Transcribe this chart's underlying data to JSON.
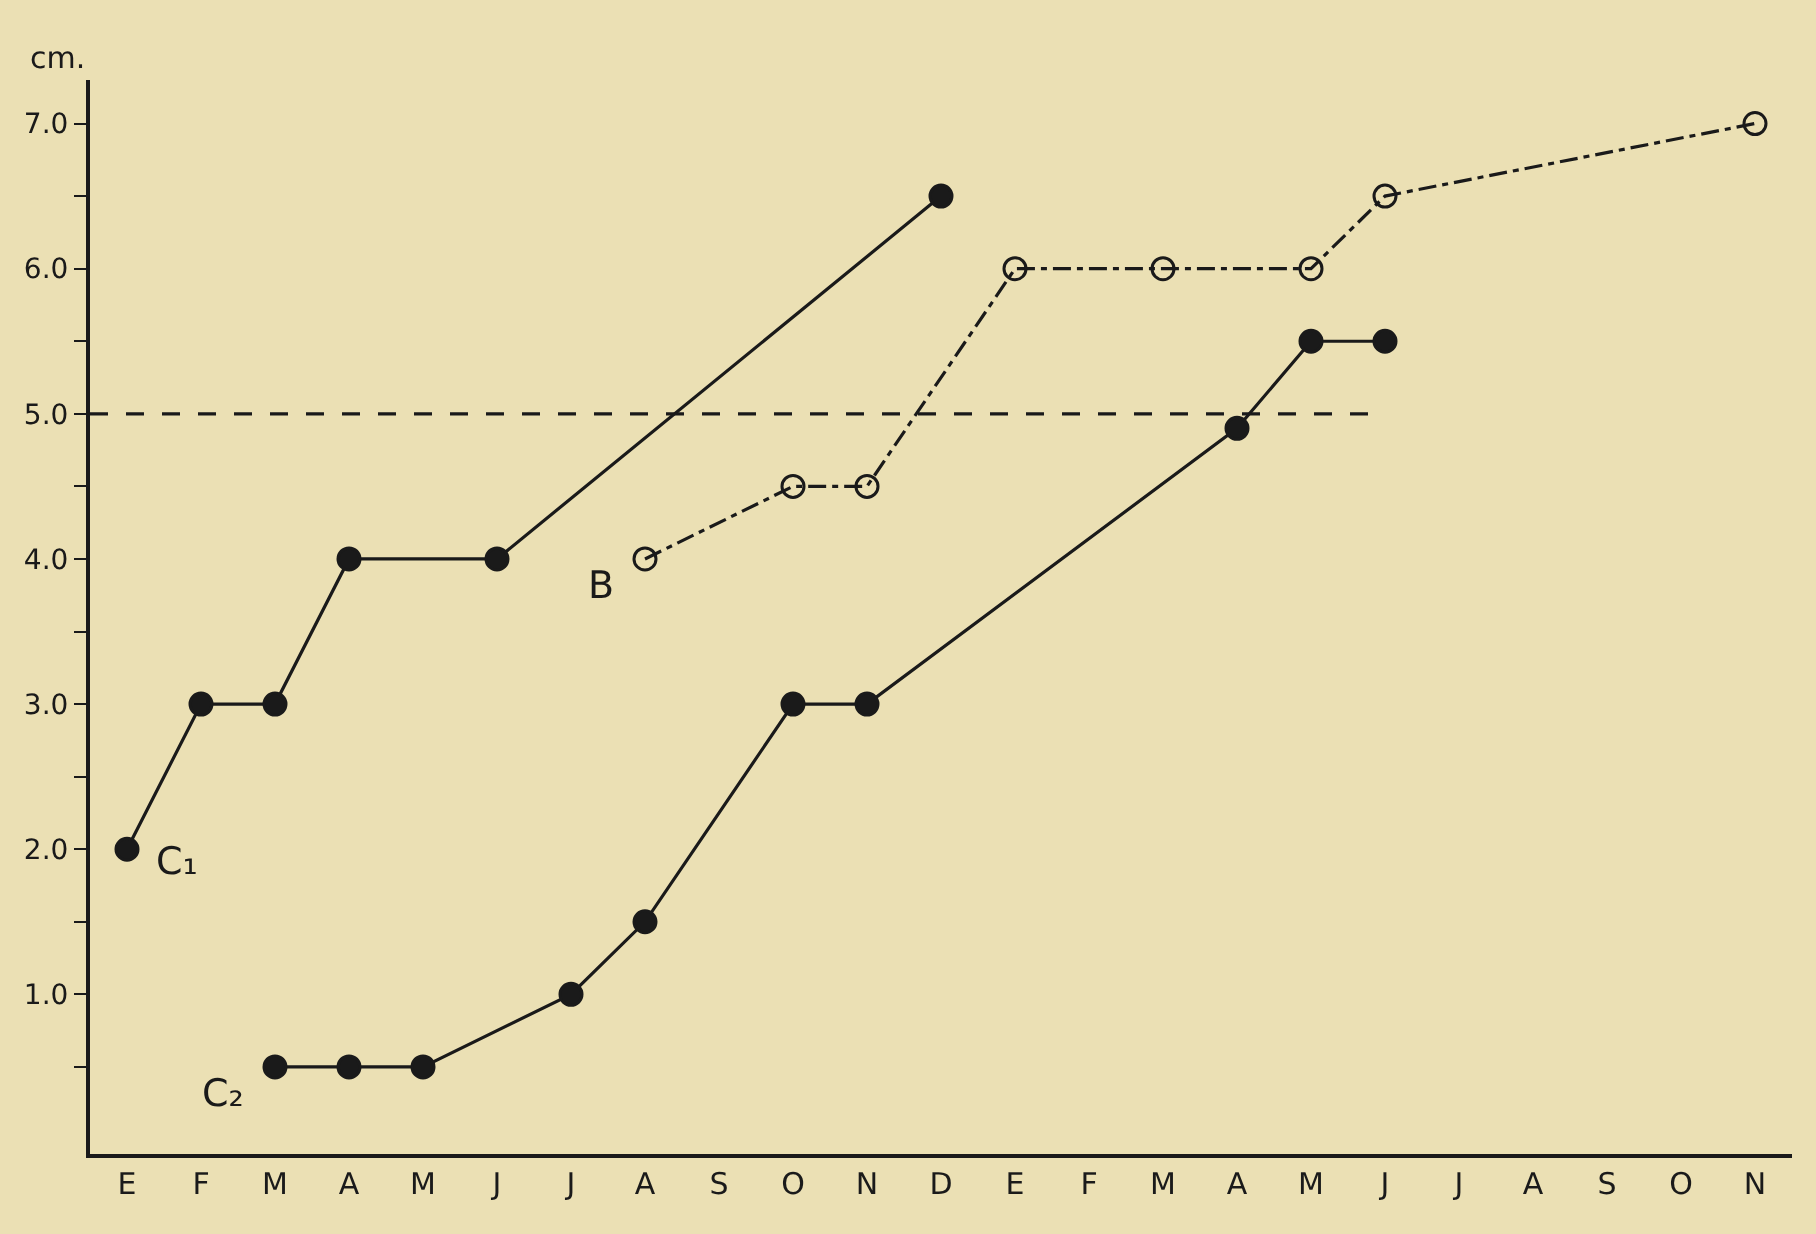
{
  "chart_data": {
    "type": "line",
    "ylabel": "cm.",
    "categories": [
      "E",
      "F",
      "M",
      "A",
      "M",
      "J",
      "J",
      "A",
      "S",
      "O",
      "N",
      "D",
      "E",
      "F",
      "M",
      "A",
      "M",
      "J",
      "J",
      "A",
      "S",
      "O",
      "N"
    ],
    "series": [
      {
        "name": "C₁",
        "color": "#1a1a1a",
        "marker": "circle",
        "line_style": "solid",
        "values": [
          2.0,
          3.0,
          3.0,
          4.0,
          null,
          4.0,
          null,
          null,
          null,
          null,
          null,
          6.5,
          null,
          null,
          null,
          null,
          null,
          null,
          null,
          null,
          null,
          null,
          null
        ]
      },
      {
        "name": "C₂",
        "color": "#1a1a1a",
        "marker": "circle",
        "line_style": "solid",
        "values": [
          null,
          null,
          0.5,
          0.5,
          0.5,
          null,
          1.0,
          1.5,
          null,
          3.0,
          3.0,
          null,
          null,
          null,
          null,
          4.9,
          5.5,
          5.5,
          null,
          null,
          null,
          null,
          null
        ]
      },
      {
        "name": "B",
        "color": "#1a1a1a",
        "marker": "circle-open",
        "line_style": "dashdot",
        "values": [
          null,
          null,
          null,
          null,
          null,
          null,
          null,
          4.0,
          null,
          4.5,
          4.5,
          null,
          6.0,
          null,
          6.0,
          null,
          6.0,
          6.5,
          null,
          null,
          null,
          null,
          7.0
        ]
      }
    ],
    "ylim": [
      -0.1,
      7.3
    ],
    "yticks": [
      {
        "value": 0.5,
        "label": null
      },
      {
        "value": 1.0,
        "label": "1.0"
      },
      {
        "value": 1.5,
        "label": null
      },
      {
        "value": 2.0,
        "label": "2.0"
      },
      {
        "value": 2.5,
        "label": null
      },
      {
        "value": 3.0,
        "label": "3.0"
      },
      {
        "value": 3.5,
        "label": null
      },
      {
        "value": 4.0,
        "label": "4.0"
      },
      {
        "value": 4.5,
        "label": null
      },
      {
        "value": 5.0,
        "label": "5.0"
      },
      {
        "value": 5.5,
        "label": null
      },
      {
        "value": 6.0,
        "label": "6.0"
      },
      {
        "value": 6.5,
        "label": null
      },
      {
        "value": 7.0,
        "label": "7.0"
      }
    ],
    "ref_lines": [
      {
        "axis": "y",
        "value": 5.0,
        "line_style": "dashed",
        "color": "#1a1a1a"
      }
    ],
    "grid": false,
    "legend": false
  }
}
